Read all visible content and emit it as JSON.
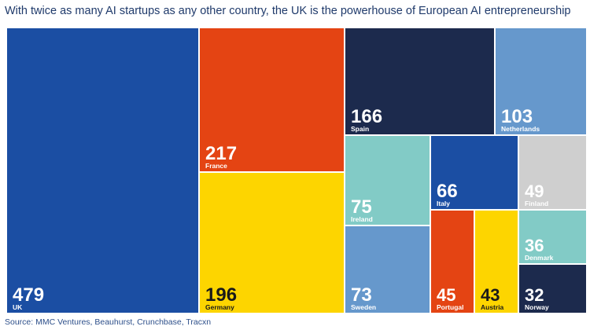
{
  "header": {
    "title": "With twice as many AI startups as any other country, the UK is the powerhouse of European AI entrepreneurship"
  },
  "footer": {
    "source": "Source: MMC Ventures, Beauhurst, Crunchbase, Tracxn"
  },
  "chart_data": {
    "type": "treemap",
    "title": "With twice as many AI startups as any other country, the UK is the powerhouse of European AI entrepreneurship",
    "items": [
      {
        "label": "UK",
        "value": 479,
        "color": "#1b4ea3",
        "text_color": "#ffffff"
      },
      {
        "label": "France",
        "value": 217,
        "color": "#e44413",
        "text_color": "#ffffff"
      },
      {
        "label": "Germany",
        "value": 196,
        "color": "#fdd500",
        "text_color": "#1a1a1a"
      },
      {
        "label": "Spain",
        "value": 166,
        "color": "#1c2a4d",
        "text_color": "#ffffff"
      },
      {
        "label": "Netherlands",
        "value": 103,
        "color": "#6698cc",
        "text_color": "#ffffff"
      },
      {
        "label": "Ireland",
        "value": 75,
        "color": "#82cbc6",
        "text_color": "#ffffff"
      },
      {
        "label": "Italy",
        "value": 66,
        "color": "#1b4ea3",
        "text_color": "#ffffff"
      },
      {
        "label": "Finland",
        "value": 49,
        "color": "#cfcfcf",
        "text_color": "#ffffff"
      },
      {
        "label": "Sweden",
        "value": 73,
        "color": "#6698cc",
        "text_color": "#ffffff"
      },
      {
        "label": "Denmark",
        "value": 36,
        "color": "#82cbc6",
        "text_color": "#ffffff"
      },
      {
        "label": "Portugal",
        "value": 45,
        "color": "#e44413",
        "text_color": "#ffffff"
      },
      {
        "label": "Austria",
        "value": 43,
        "color": "#fdd500",
        "text_color": "#1a1a1a"
      },
      {
        "label": "Norway",
        "value": 32,
        "color": "#1c2a4d",
        "text_color": "#ffffff"
      }
    ]
  }
}
